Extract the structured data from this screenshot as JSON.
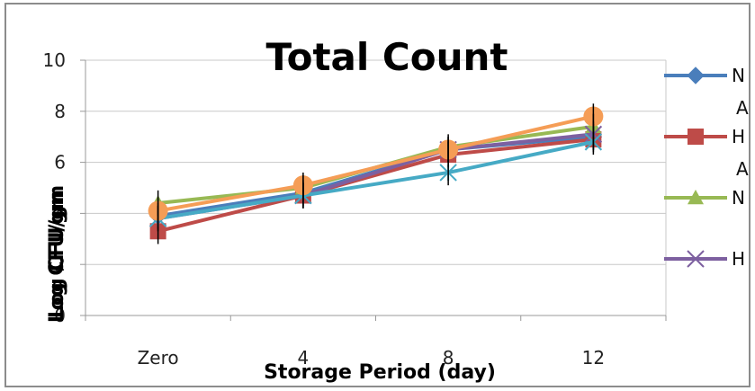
{
  "chart_data": {
    "type": "line",
    "title": "Total Count",
    "xlabel": "Storage Period (day)",
    "ylabel": "Log CFU/gm",
    "ylabel_overlap": "Log CFU/gm",
    "categories": [
      "Zero",
      "4",
      "8",
      "12"
    ],
    "yticks": [
      "0",
      "2",
      "4",
      "6",
      "8",
      "10"
    ],
    "ylim": [
      0,
      10
    ],
    "grid": true,
    "legend_placement": "right",
    "legend_fragments": [
      "N",
      "A",
      "H",
      "A",
      "N",
      "H"
    ],
    "series": [
      {
        "legend_label": "N A",
        "color": "#4A7EBB",
        "marker": "diamond",
        "values": [
          3.9,
          4.8,
          6.5,
          7.0
        ],
        "errors": [
          0.5,
          0.5,
          0.5,
          0.5
        ]
      },
      {
        "legend_label": "H A",
        "color": "#BE4B48",
        "marker": "square",
        "values": [
          3.3,
          4.7,
          6.3,
          6.9
        ],
        "errors": [
          0.5,
          0.5,
          0.5,
          0.5
        ]
      },
      {
        "legend_label": "N",
        "color": "#98B954",
        "marker": "triangle",
        "values": [
          4.4,
          5.0,
          6.6,
          7.4
        ],
        "errors": [
          0.5,
          0.5,
          0.5,
          0.5
        ]
      },
      {
        "legend_label": "H",
        "color": "#7D60A0",
        "marker": "x",
        "values": [
          3.8,
          4.7,
          6.5,
          7.1
        ],
        "errors": [
          0.5,
          0.5,
          0.5,
          0.5
        ]
      },
      {
        "legend_label": "",
        "color": "#46AAC5",
        "marker": "star",
        "values": [
          3.8,
          4.7,
          5.6,
          6.8
        ],
        "errors": [
          0.5,
          0.5,
          0.5,
          0.5
        ]
      },
      {
        "legend_label": "",
        "color": "#F59D56",
        "marker": "circle",
        "values": [
          4.1,
          5.1,
          6.5,
          7.8
        ],
        "errors": [
          0.5,
          0.5,
          0.5,
          0.5
        ]
      }
    ]
  }
}
